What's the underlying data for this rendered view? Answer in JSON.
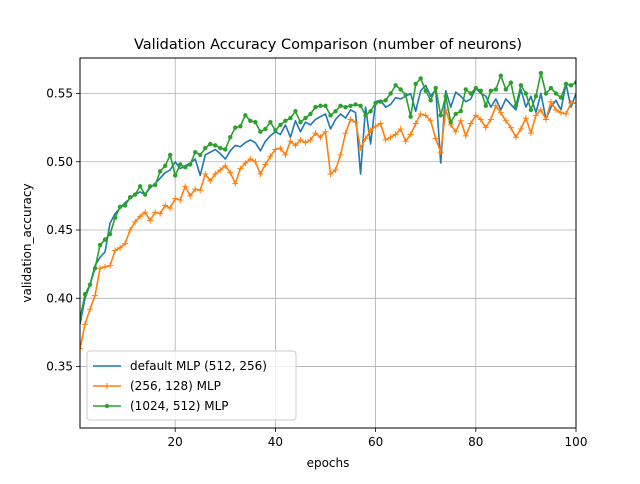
{
  "chart_data": {
    "type": "line",
    "title": "Validation Accuracy Comparison (number of neurons)",
    "xlabel": "epochs",
    "ylabel": "validation_accuracy",
    "xlim": [
      1,
      100
    ],
    "ylim": [
      0.305,
      0.576
    ],
    "xticks": [
      20,
      40,
      60,
      80,
      100
    ],
    "yticks": [
      0.35,
      0.4,
      0.45,
      0.5,
      0.55
    ],
    "ytick_labels": [
      "0.35",
      "0.40",
      "0.45",
      "0.50",
      "0.55"
    ],
    "grid": true,
    "legend_position": "lower-left",
    "x": [
      1,
      2,
      3,
      4,
      5,
      6,
      7,
      8,
      9,
      10,
      11,
      12,
      13,
      14,
      15,
      16,
      17,
      18,
      19,
      20,
      21,
      22,
      23,
      24,
      25,
      26,
      27,
      28,
      29,
      30,
      31,
      32,
      33,
      34,
      35,
      36,
      37,
      38,
      39,
      40,
      41,
      42,
      43,
      44,
      45,
      46,
      47,
      48,
      49,
      50,
      51,
      52,
      53,
      54,
      55,
      56,
      57,
      58,
      59,
      60,
      61,
      62,
      63,
      64,
      65,
      66,
      67,
      68,
      69,
      70,
      71,
      72,
      73,
      74,
      75,
      76,
      77,
      78,
      79,
      80,
      81,
      82,
      83,
      84,
      85,
      86,
      87,
      88,
      89,
      90,
      91,
      92,
      93,
      94,
      95,
      96,
      97,
      98,
      99,
      100
    ],
    "series": [
      {
        "name": "default MLP (512, 256)",
        "color": "#1f77b4",
        "marker": "none",
        "values": [
          0.381,
          0.4,
          0.41,
          0.424,
          0.43,
          0.434,
          0.455,
          0.462,
          0.466,
          0.47,
          0.473,
          0.476,
          0.478,
          0.476,
          0.481,
          0.484,
          0.488,
          0.492,
          0.494,
          0.5,
          0.495,
          0.497,
          0.499,
          0.502,
          0.49,
          0.505,
          0.507,
          0.509,
          0.506,
          0.502,
          0.508,
          0.512,
          0.511,
          0.514,
          0.516,
          0.514,
          0.508,
          0.515,
          0.519,
          0.522,
          0.52,
          0.527,
          0.518,
          0.53,
          0.522,
          0.529,
          0.527,
          0.531,
          0.533,
          0.535,
          0.524,
          0.531,
          0.535,
          0.532,
          0.538,
          0.536,
          0.491,
          0.54,
          0.513,
          0.544,
          0.545,
          0.54,
          0.542,
          0.547,
          0.546,
          0.548,
          0.55,
          0.537,
          0.552,
          0.556,
          0.548,
          0.553,
          0.499,
          0.552,
          0.54,
          0.551,
          0.548,
          0.544,
          0.546,
          0.554,
          0.55,
          0.548,
          0.54,
          0.546,
          0.538,
          0.546,
          0.542,
          0.538,
          0.553,
          0.54,
          0.548,
          0.536,
          0.55,
          0.531,
          0.54,
          0.545,
          0.538,
          0.557,
          0.54,
          0.55
        ]
      },
      {
        "name": "(256, 128) MLP",
        "color": "#ff7f0e",
        "marker": "plus",
        "values": [
          0.363,
          0.381,
          0.392,
          0.402,
          0.422,
          0.423,
          0.424,
          0.435,
          0.437,
          0.44,
          0.45,
          0.456,
          0.46,
          0.463,
          0.457,
          0.463,
          0.462,
          0.468,
          0.466,
          0.473,
          0.472,
          0.482,
          0.475,
          0.48,
          0.479,
          0.491,
          0.486,
          0.491,
          0.494,
          0.497,
          0.492,
          0.484,
          0.495,
          0.499,
          0.502,
          0.5,
          0.491,
          0.498,
          0.504,
          0.509,
          0.51,
          0.505,
          0.515,
          0.512,
          0.516,
          0.514,
          0.516,
          0.521,
          0.518,
          0.522,
          0.491,
          0.494,
          0.505,
          0.521,
          0.531,
          0.529,
          0.51,
          0.517,
          0.523,
          0.526,
          0.528,
          0.516,
          0.518,
          0.52,
          0.524,
          0.515,
          0.52,
          0.528,
          0.535,
          0.534,
          0.53,
          0.517,
          0.507,
          0.538,
          0.527,
          0.522,
          0.53,
          0.519,
          0.528,
          0.534,
          0.531,
          0.525,
          0.531,
          0.541,
          0.536,
          0.53,
          0.525,
          0.518,
          0.524,
          0.532,
          0.521,
          0.534,
          0.538,
          0.531,
          0.544,
          0.538,
          0.536,
          0.535,
          0.543,
          0.543
        ]
      },
      {
        "name": "(1024, 512) MLP",
        "color": "#2ca02c",
        "marker": "dot",
        "values": [
          0.385,
          0.403,
          0.41,
          0.422,
          0.439,
          0.443,
          0.447,
          0.459,
          0.467,
          0.468,
          0.474,
          0.476,
          0.482,
          0.476,
          0.482,
          0.483,
          0.493,
          0.497,
          0.505,
          0.49,
          0.498,
          0.496,
          0.498,
          0.507,
          0.505,
          0.51,
          0.513,
          0.512,
          0.51,
          0.509,
          0.518,
          0.525,
          0.526,
          0.534,
          0.53,
          0.529,
          0.522,
          0.524,
          0.529,
          0.523,
          0.527,
          0.53,
          0.532,
          0.537,
          0.529,
          0.532,
          0.535,
          0.54,
          0.541,
          0.541,
          0.534,
          0.537,
          0.541,
          0.54,
          0.541,
          0.542,
          0.541,
          0.534,
          0.537,
          0.543,
          0.544,
          0.545,
          0.55,
          0.556,
          0.553,
          0.549,
          0.533,
          0.557,
          0.561,
          0.552,
          0.545,
          0.554,
          0.534,
          0.548,
          0.529,
          0.535,
          0.537,
          0.553,
          0.55,
          0.554,
          0.552,
          0.541,
          0.552,
          0.553,
          0.563,
          0.553,
          0.558,
          0.541,
          0.556,
          0.55,
          0.538,
          0.548,
          0.565,
          0.55,
          0.554,
          0.55,
          0.547,
          0.557,
          0.556,
          0.558
        ]
      }
    ]
  }
}
